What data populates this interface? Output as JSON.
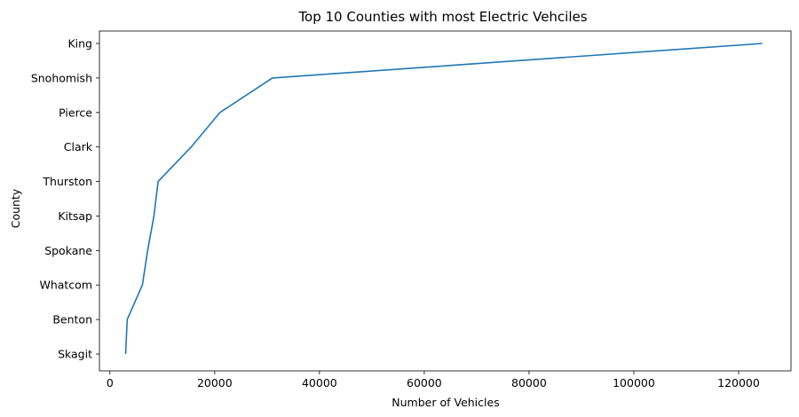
{
  "chart_data": {
    "type": "line",
    "title": "Top 10 Counties with most Electric Vehciles",
    "xlabel": "Number of Vehicles",
    "ylabel": "County",
    "orientation": "horizontal",
    "categories": [
      "Skagit",
      "Benton",
      "Whatcom",
      "Spokane",
      "Kitsap",
      "Thurston",
      "Clark",
      "Pierce",
      "Snohomish",
      "King"
    ],
    "values": [
      3000,
      3300,
      6200,
      7200,
      8400,
      9200,
      15500,
      21000,
      31000,
      124500
    ],
    "xlim": [
      -2000,
      130000
    ],
    "xticks": [
      0,
      20000,
      40000,
      60000,
      80000,
      100000,
      120000
    ],
    "xtick_labels": [
      "0",
      "20000",
      "40000",
      "60000",
      "80000",
      "100000",
      "120000"
    ],
    "grid": false,
    "legend": "none",
    "line_color": "#1f77b4"
  }
}
